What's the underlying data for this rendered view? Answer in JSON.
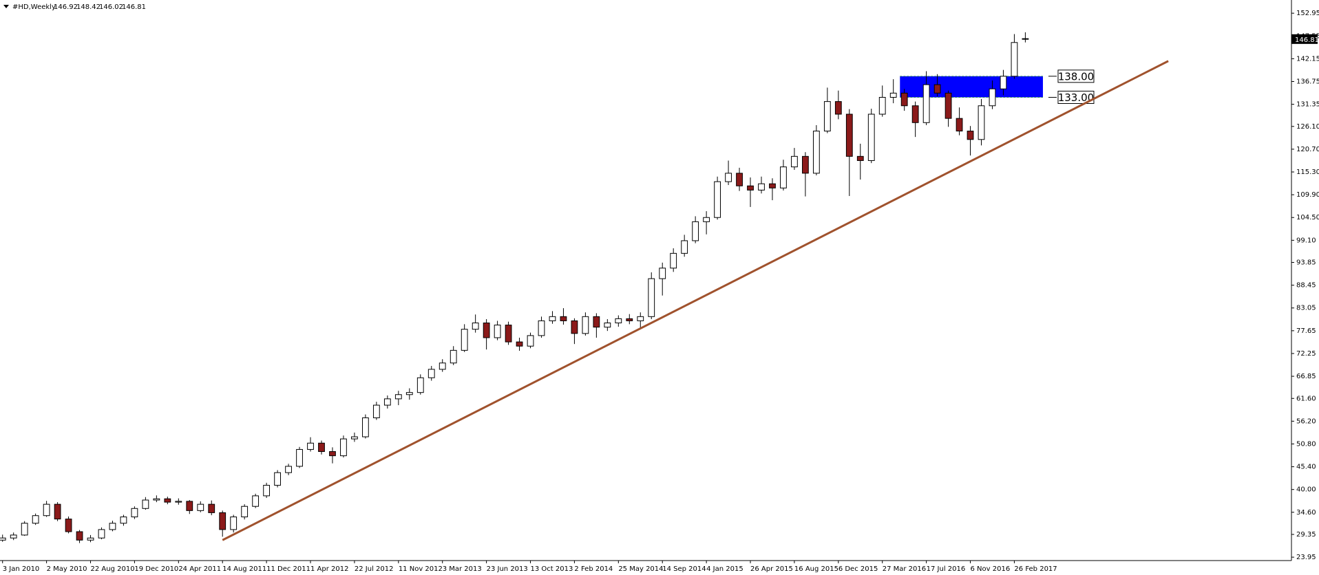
{
  "chart_data": {
    "type": "candlestick",
    "title": "#HD,Weekly",
    "categories": [
      "3 Jan 2010",
      null,
      null,
      null,
      "2 May 2010",
      null,
      null,
      null,
      "22 Aug 2010",
      null,
      null,
      null,
      "19 Dec 2010",
      null,
      null,
      null,
      "24 Apr 2011",
      null,
      null,
      null,
      "14 Aug 2011",
      null,
      null,
      null,
      "11 Dec 2011",
      null,
      null,
      null,
      "1 Apr 2012",
      null,
      null,
      null,
      "22 Jul 2012",
      null,
      null,
      null,
      "11 Nov 2012",
      null,
      null,
      null,
      "3 Mar 2013",
      null,
      null,
      null,
      "23 Jun 2013",
      null,
      null,
      null,
      "13 Oct 2013",
      null,
      null,
      null,
      "2 Feb 2014",
      null,
      null,
      null,
      "25 May 2014",
      null,
      null,
      null,
      "14 Sep 2014",
      null,
      null,
      null,
      "4 Jan 2015",
      null,
      null,
      null,
      "26 Apr 2015",
      null,
      null,
      null,
      "16 Aug 2015",
      null,
      null,
      null,
      "6 Dec 2015",
      null,
      null,
      null,
      "27 Mar 2016",
      null,
      null,
      null,
      "17 Jul 2016",
      null,
      null,
      null,
      "6 Nov 2016",
      null,
      null,
      null,
      "26 Feb 2017",
      null
    ],
    "open": [
      28.0,
      28.5,
      29.2,
      32.0,
      33.8,
      36.5,
      33.0,
      30.0,
      28.0,
      28.5,
      30.5,
      32.0,
      33.5,
      35.5,
      37.5,
      37.8,
      37.0,
      37.2,
      35.0,
      36.5,
      34.5,
      30.5,
      33.5,
      36.0,
      38.5,
      41.0,
      44.0,
      45.5,
      49.5,
      51.0,
      49.0,
      48.0,
      52.0,
      52.5,
      57.0,
      60.0,
      61.5,
      62.5,
      63.0,
      66.5,
      68.5,
      70.0,
      73.0,
      78.0,
      79.5,
      76.0,
      79.0,
      75.0,
      74.0,
      76.5,
      80.0,
      81.0,
      80.0,
      77.0,
      81.0,
      78.5,
      79.5,
      80.5,
      80.0,
      81.0,
      90.0,
      92.5,
      96.0,
      99.0,
      103.5,
      104.5,
      113.0,
      115.0,
      112.0,
      111.0,
      112.5,
      111.5,
      116.5,
      119.0,
      115.0,
      125.0,
      132.0,
      129.0,
      119.0,
      118.0,
      129.0,
      133.0,
      134.0,
      131.0,
      127.0,
      136.0,
      134.0,
      128.0,
      125.0,
      123.0,
      131.0,
      135.0,
      138.0,
      146.92
    ],
    "high": [
      29.3,
      29.8,
      32.5,
      34.3,
      37.3,
      37.0,
      33.6,
      30.4,
      29.2,
      31.0,
      32.6,
      34.0,
      36.0,
      38.2,
      38.6,
      38.3,
      37.9,
      37.5,
      37.2,
      37.4,
      35.0,
      34.0,
      36.5,
      39.0,
      41.6,
      44.6,
      46.1,
      50.1,
      52.4,
      51.6,
      50.0,
      52.8,
      53.5,
      57.8,
      60.8,
      62.3,
      63.4,
      64.0,
      67.3,
      69.3,
      70.9,
      74.0,
      79.2,
      81.5,
      80.4,
      80.0,
      79.8,
      76.0,
      77.2,
      81.0,
      82.3,
      83.0,
      80.6,
      82.0,
      81.8,
      80.4,
      81.3,
      81.6,
      82.0,
      91.5,
      93.8,
      97.2,
      100.4,
      104.8,
      106.0,
      114.2,
      118.0,
      116.3,
      114.0,
      114.2,
      113.8,
      118.2,
      121.0,
      120.0,
      126.4,
      135.3,
      134.6,
      130.2,
      122.0,
      130.3,
      135.8,
      137.3,
      135.0,
      132.0,
      139.2,
      138.5,
      134.6,
      130.6,
      126.2,
      132.6,
      137.0,
      139.5,
      148.0,
      148.42
    ],
    "low": [
      27.6,
      28.0,
      29.0,
      31.6,
      33.5,
      32.5,
      29.6,
      27.3,
      27.5,
      28.2,
      30.1,
      31.4,
      33.0,
      35.2,
      37.0,
      36.5,
      36.4,
      34.2,
      34.6,
      33.9,
      28.8,
      29.8,
      32.9,
      35.6,
      38.0,
      40.5,
      43.4,
      45.1,
      49.0,
      48.3,
      46.2,
      47.6,
      51.3,
      52.1,
      56.5,
      59.2,
      60.0,
      61.3,
      62.5,
      65.8,
      67.9,
      69.5,
      72.6,
      77.2,
      73.2,
      75.4,
      74.3,
      72.9,
      73.5,
      76.0,
      79.3,
      79.1,
      74.5,
      76.5,
      76.0,
      77.6,
      78.6,
      79.2,
      78.4,
      80.4,
      86.0,
      91.6,
      95.2,
      98.4,
      100.5,
      104.0,
      112.2,
      110.8,
      107.0,
      110.2,
      108.6,
      110.9,
      115.8,
      109.5,
      114.5,
      124.5,
      127.8,
      109.6,
      113.5,
      117.4,
      128.4,
      131.6,
      129.8,
      123.6,
      126.4,
      133.2,
      126.0,
      124.0,
      119.2,
      121.6,
      130.2,
      133.5,
      137.4,
      146.02
    ],
    "close": [
      28.5,
      29.2,
      32.0,
      33.8,
      36.5,
      33.0,
      30.0,
      28.0,
      28.5,
      30.5,
      32.0,
      33.5,
      35.5,
      37.5,
      37.8,
      37.0,
      37.2,
      35.0,
      36.5,
      34.5,
      30.5,
      33.5,
      36.0,
      38.5,
      41.0,
      44.0,
      45.5,
      49.5,
      51.0,
      49.0,
      48.0,
      52.0,
      52.5,
      57.0,
      60.0,
      61.5,
      62.5,
      63.0,
      66.5,
      68.5,
      70.0,
      73.0,
      78.0,
      79.5,
      76.0,
      79.0,
      75.0,
      74.0,
      76.5,
      80.0,
      81.0,
      80.0,
      77.0,
      81.0,
      78.5,
      79.5,
      80.5,
      80.0,
      81.0,
      90.0,
      92.5,
      96.0,
      99.0,
      103.5,
      104.5,
      113.0,
      115.0,
      112.0,
      111.0,
      112.5,
      111.5,
      116.5,
      119.0,
      115.0,
      125.0,
      132.0,
      129.0,
      119.0,
      118.0,
      129.0,
      133.0,
      134.0,
      131.0,
      127.0,
      136.0,
      134.0,
      128.0,
      125.0,
      123.0,
      131.0,
      135.0,
      138.0,
      146.0,
      146.81
    ],
    "up_color": "#ffffff",
    "down_color": "#8b1a1a",
    "xlim": [
      -0.17,
      117.2
    ],
    "ylim": [
      23.15,
      155.1
    ],
    "yticks": [
      152.95,
      147.55,
      142.15,
      136.75,
      131.35,
      {
        "value": 126.1,
        "label": "126.10"
      },
      {
        "value": 120.7,
        "label": "120.70"
      },
      {
        "value": 115.3,
        "label": "115.30"
      },
      {
        "value": 109.9,
        "label": "109.90"
      },
      {
        "value": 104.5,
        "label": "104.50"
      },
      {
        "value": 99.1,
        "label": "99.10"
      },
      93.85,
      88.45,
      83.05,
      77.65,
      72.25,
      66.85,
      {
        "value": 61.6,
        "label": "61.60"
      },
      {
        "value": 56.2,
        "label": "56.20"
      },
      {
        "value": 50.8,
        "label": "50.80"
      },
      {
        "value": 45.4,
        "label": "45.40"
      },
      {
        "value": 40,
        "label": "40.00"
      },
      {
        "value": 34.6,
        "label": "34.60"
      },
      29.35,
      23.95
    ],
    "trendline": {
      "x": [
        20,
        106
      ],
      "y": [
        28.0,
        141.6
      ],
      "color": "#a0522d"
    },
    "zone": {
      "x": [
        81.6,
        94.6
      ],
      "color": "#0000ff",
      "levels": [
        {
          "value": 138,
          "label": "138.00"
        },
        {
          "value": 133,
          "label": "133.00"
        }
      ]
    }
  }
}
